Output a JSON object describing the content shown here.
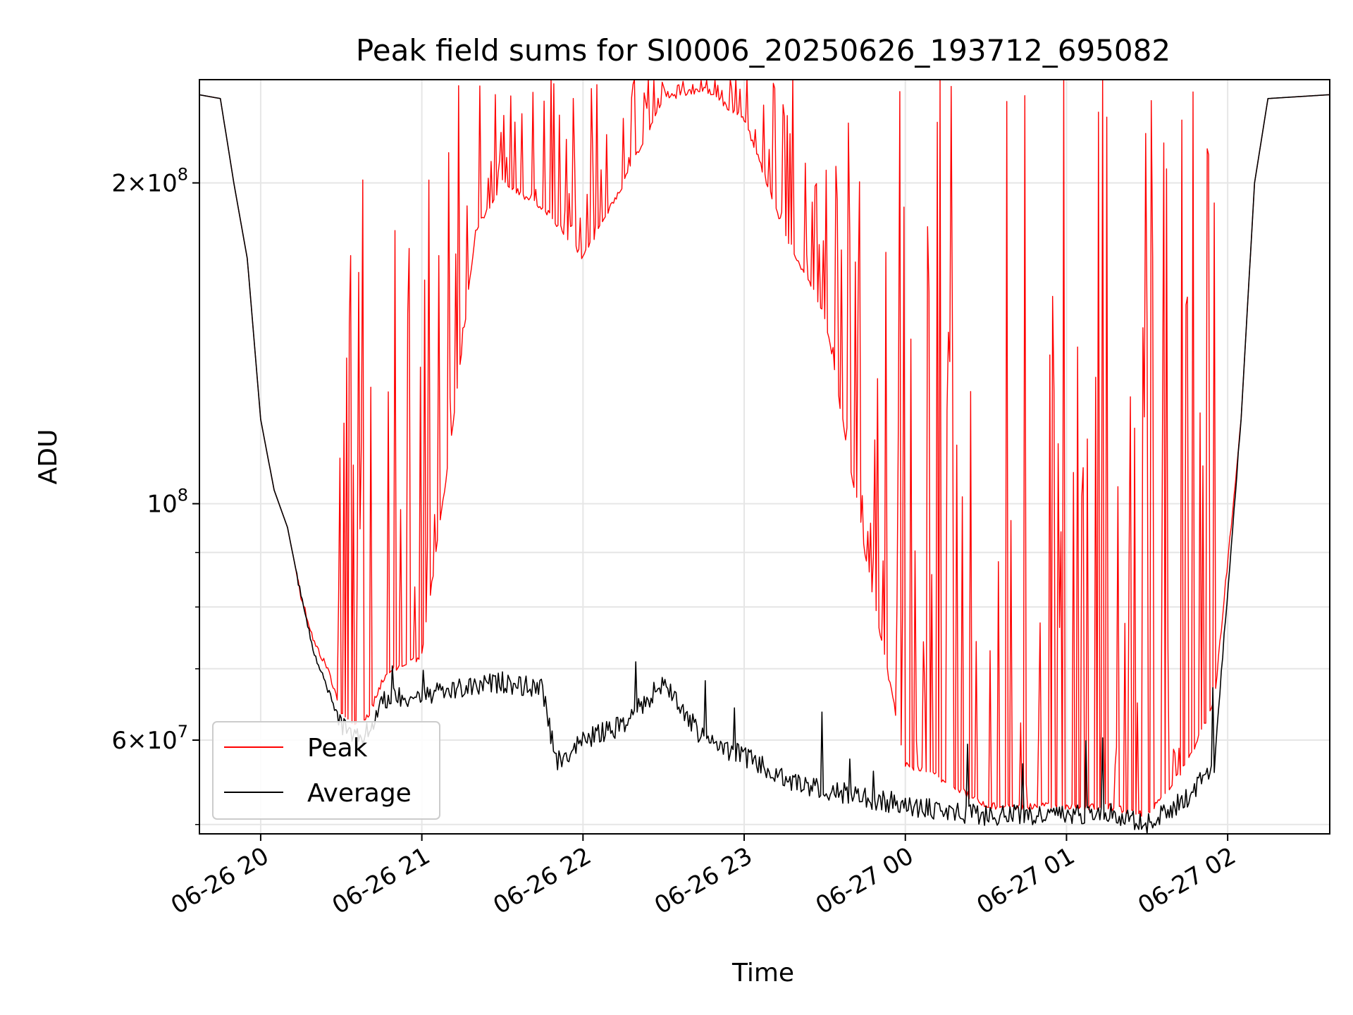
{
  "chart_data": {
    "type": "line",
    "title": "Peak field sums for SI0006_20250626_193712_695082",
    "xlabel": "Time",
    "ylabel": "ADU",
    "yscale": "log",
    "x_type": "datetime",
    "xlim": [
      "2025-06-26T19:37:12",
      "2025-06-27T02:38:00"
    ],
    "ylim": [
      49000000,
      250000000
    ],
    "grid": true,
    "legend_position": "lower-left",
    "x_ticks": [
      {
        "value": "2025-06-26T20:00",
        "label": "06-26 20"
      },
      {
        "value": "2025-06-26T21:00",
        "label": "06-26 21"
      },
      {
        "value": "2025-06-26T22:00",
        "label": "06-26 22"
      },
      {
        "value": "2025-06-26T23:00",
        "label": "06-26 23"
      },
      {
        "value": "2025-06-27T00:00",
        "label": "06-27 00"
      },
      {
        "value": "2025-06-27T01:00",
        "label": "06-27 01"
      },
      {
        "value": "2025-06-27T02:00",
        "label": "06-27 02"
      }
    ],
    "y_ticks_major": [
      {
        "value": 60000000,
        "mantissa": "6",
        "times": "×",
        "base": "10",
        "exp": "7"
      },
      {
        "value": 100000000,
        "mantissa": "",
        "times": "",
        "base": "10",
        "exp": "8"
      },
      {
        "value": 200000000,
        "mantissa": "2",
        "times": "×",
        "base": "10",
        "exp": "8"
      }
    ],
    "y_ticks_minor": [
      50000000,
      70000000,
      80000000,
      90000000
    ],
    "series": [
      {
        "name": "Peak",
        "color": "#ff0000",
        "points": [
          [
            "2025-06-26T19:37",
            242000000
          ],
          [
            "2025-06-26T19:45",
            240000000
          ],
          [
            "2025-06-26T19:50",
            200000000
          ],
          [
            "2025-06-26T19:55",
            170000000
          ],
          [
            "2025-06-26T20:00",
            120000000
          ],
          [
            "2025-06-26T20:05",
            103000000
          ],
          [
            "2025-06-26T20:10",
            95000000
          ],
          [
            "2025-06-26T20:15",
            82000000
          ],
          [
            "2025-06-26T20:20",
            74000000
          ],
          [
            "2025-06-26T20:25",
            70000000
          ],
          [
            "2025-06-26T20:30",
            64000000
          ],
          [
            "2025-06-26T20:35",
            62000000
          ],
          [
            "2025-06-26T20:40",
            63000000
          ],
          [
            "2025-06-26T20:45",
            68000000
          ],
          [
            "2025-06-26T20:50",
            70000000
          ],
          [
            "2025-06-26T21:00",
            72000000
          ],
          [
            "2025-06-26T21:10",
            110000000
          ],
          [
            "2025-06-26T21:20",
            180000000
          ],
          [
            "2025-06-26T21:30",
            200000000
          ],
          [
            "2025-06-26T21:45",
            190000000
          ],
          [
            "2025-06-26T22:00",
            170000000
          ],
          [
            "2025-06-26T22:15",
            200000000
          ],
          [
            "2025-06-26T22:30",
            240000000
          ],
          [
            "2025-06-26T22:45",
            245000000
          ],
          [
            "2025-06-26T23:00",
            230000000
          ],
          [
            "2025-06-26T23:15",
            180000000
          ],
          [
            "2025-06-26T23:30",
            150000000
          ],
          [
            "2025-06-26T23:45",
            90000000
          ],
          [
            "2025-06-27T00:00",
            57000000
          ],
          [
            "2025-06-27T00:15",
            55000000
          ],
          [
            "2025-06-27T00:30",
            52000000
          ],
          [
            "2025-06-27T00:45",
            52000000
          ],
          [
            "2025-06-27T01:00",
            52000000
          ],
          [
            "2025-06-27T01:15",
            52000000
          ],
          [
            "2025-06-27T01:30",
            51000000
          ],
          [
            "2025-06-27T01:45",
            57000000
          ],
          [
            "2025-06-27T01:55",
            65000000
          ],
          [
            "2025-06-27T02:05",
            120000000
          ],
          [
            "2025-06-27T02:10",
            200000000
          ],
          [
            "2025-06-27T02:15",
            240000000
          ],
          [
            "2025-06-27T02:38",
            242000000
          ]
        ]
      },
      {
        "name": "Average",
        "color": "#000000",
        "points": [
          [
            "2025-06-26T19:37",
            242000000
          ],
          [
            "2025-06-26T19:45",
            240000000
          ],
          [
            "2025-06-26T19:50",
            200000000
          ],
          [
            "2025-06-26T19:55",
            170000000
          ],
          [
            "2025-06-26T20:00",
            120000000
          ],
          [
            "2025-06-26T20:05",
            103000000
          ],
          [
            "2025-06-26T20:10",
            95000000
          ],
          [
            "2025-06-26T20:15",
            82000000
          ],
          [
            "2025-06-26T20:20",
            72000000
          ],
          [
            "2025-06-26T20:25",
            67000000
          ],
          [
            "2025-06-26T20:30",
            62000000
          ],
          [
            "2025-06-26T20:35",
            60000000
          ],
          [
            "2025-06-26T20:40",
            61000000
          ],
          [
            "2025-06-26T20:45",
            65000000
          ],
          [
            "2025-06-26T20:50",
            66000000
          ],
          [
            "2025-06-26T21:00",
            66000000
          ],
          [
            "2025-06-26T21:15",
            67000000
          ],
          [
            "2025-06-26T21:30",
            68000000
          ],
          [
            "2025-06-26T21:45",
            67000000
          ],
          [
            "2025-06-26T21:50",
            57000000
          ],
          [
            "2025-06-26T22:00",
            60000000
          ],
          [
            "2025-06-26T22:15",
            62000000
          ],
          [
            "2025-06-26T22:30",
            68000000
          ],
          [
            "2025-06-26T22:45",
            60000000
          ],
          [
            "2025-06-26T23:00",
            58000000
          ],
          [
            "2025-06-26T23:15",
            55000000
          ],
          [
            "2025-06-26T23:30",
            54000000
          ],
          [
            "2025-06-26T23:45",
            53000000
          ],
          [
            "2025-06-27T00:00",
            52000000
          ],
          [
            "2025-06-27T00:30",
            51000000
          ],
          [
            "2025-06-27T01:00",
            51000000
          ],
          [
            "2025-06-27T01:15",
            51500000
          ],
          [
            "2025-06-27T01:30",
            50000000
          ],
          [
            "2025-06-27T01:45",
            53000000
          ],
          [
            "2025-06-27T01:55",
            57000000
          ],
          [
            "2025-06-27T02:05",
            120000000
          ],
          [
            "2025-06-27T02:10",
            200000000
          ],
          [
            "2025-06-27T02:15",
            240000000
          ],
          [
            "2025-06-27T02:38",
            242000000
          ]
        ]
      }
    ]
  }
}
